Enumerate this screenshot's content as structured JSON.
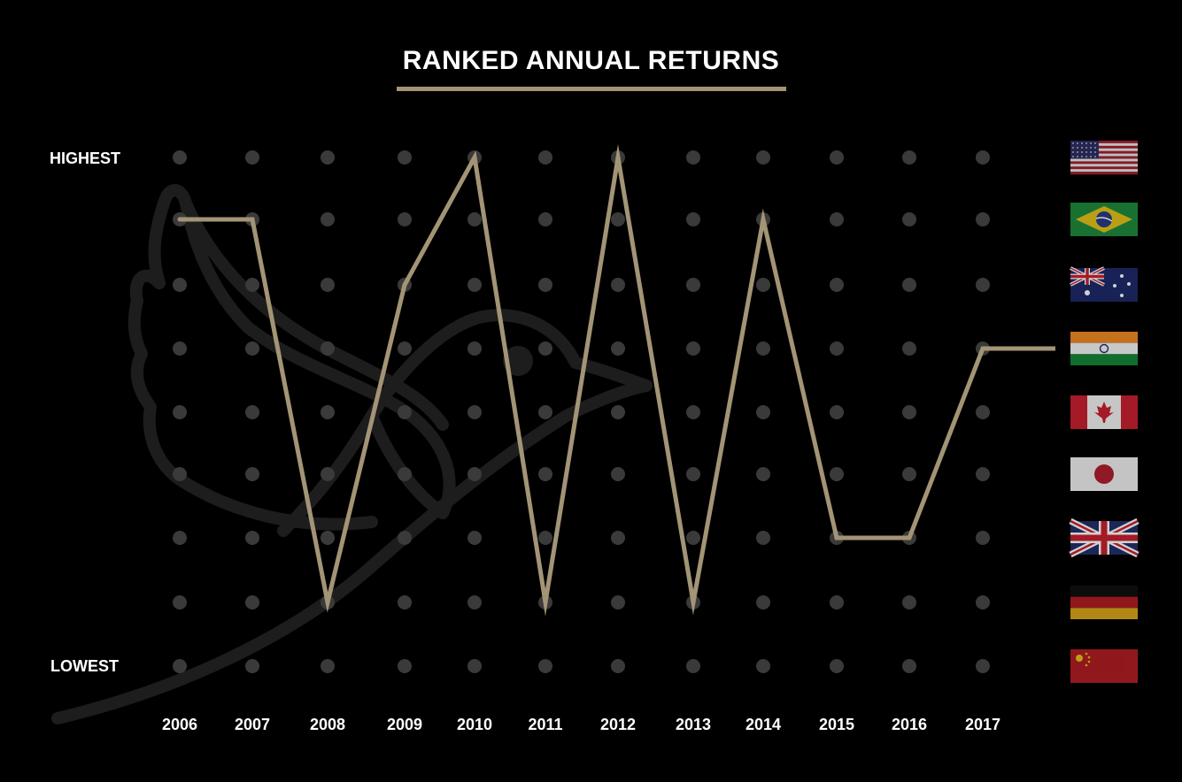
{
  "chart_data": {
    "type": "line",
    "title": "RANKED ANNUAL RETURNS",
    "y_top_label": "HIGHEST",
    "y_bottom_label": "LOWEST",
    "categories": [
      "2006",
      "2007",
      "2008",
      "2009",
      "2010",
      "2011",
      "2012",
      "2013",
      "2014",
      "2015",
      "2016",
      "2017"
    ],
    "rank_levels": 9,
    "series": [
      {
        "values": [
          2,
          2,
          8,
          3,
          1,
          8,
          1,
          8,
          2,
          7,
          7,
          4
        ],
        "color": "#a39476"
      }
    ],
    "countries_by_rank": [
      {
        "icon": "usa-flag-icon"
      },
      {
        "icon": "brazil-flag-icon"
      },
      {
        "icon": "australia-flag-icon"
      },
      {
        "icon": "india-flag-icon"
      },
      {
        "icon": "canada-flag-icon"
      },
      {
        "icon": "japan-flag-icon"
      },
      {
        "icon": "uk-flag-icon"
      },
      {
        "icon": "germany-flag-icon"
      },
      {
        "icon": "china-flag-icon"
      }
    ],
    "final_rank_extends_to_flag": true,
    "grid": true,
    "colors": {
      "background": "#000000",
      "line": "#a39476",
      "dot": "#3a3a3a",
      "accent": "#a39476"
    },
    "background_icon": "bird-watermark-icon"
  }
}
